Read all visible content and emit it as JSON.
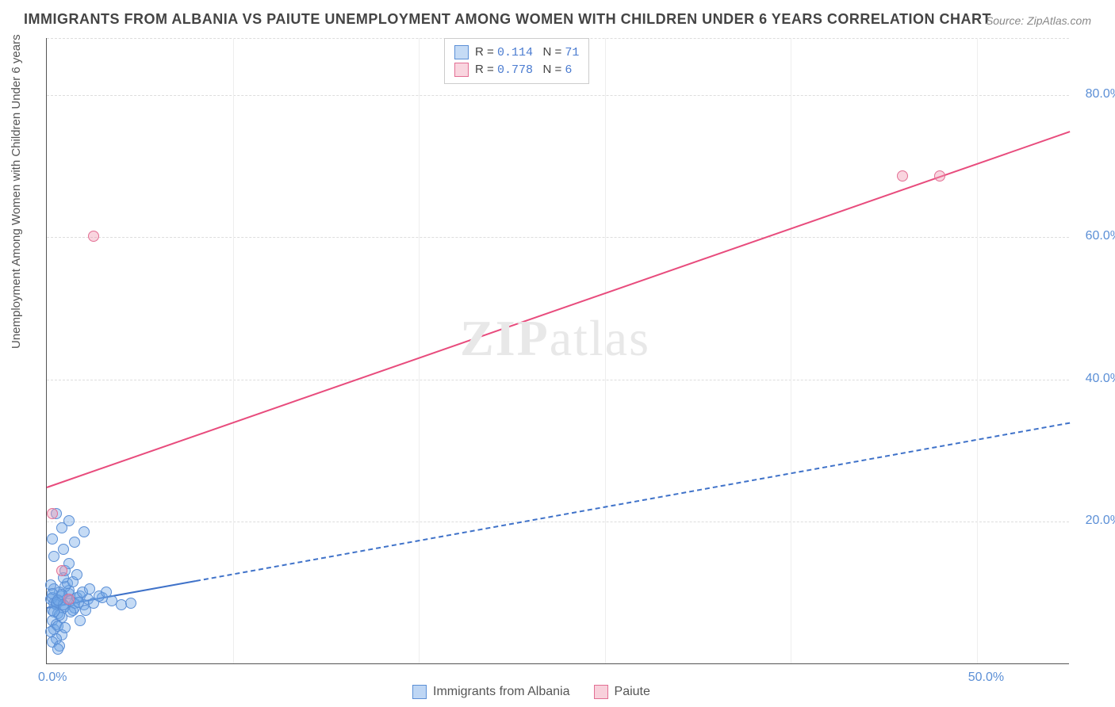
{
  "title": "IMMIGRANTS FROM ALBANIA VS PAIUTE UNEMPLOYMENT AMONG WOMEN WITH CHILDREN UNDER 6 YEARS CORRELATION CHART",
  "source": "Source: ZipAtlas.com",
  "watermark_zip": "ZIP",
  "watermark_atlas": "atlas",
  "ylabel": "Unemployment Among Women with Children Under 6 years",
  "chart": {
    "type": "scatter",
    "background_color": "#ffffff",
    "grid_color": "#dddddd",
    "axis_color": "#555555",
    "tick_color": "#5b8fd6",
    "xlim": [
      0,
      55
    ],
    "ylim": [
      0,
      88
    ],
    "xticks": [
      {
        "v": 0,
        "l": "0.0%"
      },
      {
        "v": 50,
        "l": "50.0%"
      }
    ],
    "yticks": [
      {
        "v": 20,
        "l": "20.0%"
      },
      {
        "v": 40,
        "l": "40.0%"
      },
      {
        "v": 60,
        "l": "60.0%"
      },
      {
        "v": 80,
        "l": "80.0%"
      }
    ],
    "vgrids": [
      10,
      20,
      30,
      40,
      50
    ],
    "series": [
      {
        "name": "Immigrants from Albania",
        "color_fill": "rgba(110,165,230,0.4)",
        "color_stroke": "#5b8fd6",
        "r_value": "0.114",
        "n_value": "71",
        "marker_size": 14,
        "trend": {
          "x1": 0,
          "y1": 8,
          "x2": 55,
          "y2": 34,
          "solid_until": 8,
          "stroke": "#3f72c9",
          "width": 2.5
        },
        "points": [
          [
            0.2,
            9
          ],
          [
            0.4,
            8.5
          ],
          [
            0.6,
            8.8
          ],
          [
            0.3,
            9.2
          ],
          [
            0.5,
            8.2
          ],
          [
            0.8,
            9.5
          ],
          [
            1,
            8
          ],
          [
            1.2,
            9.8
          ],
          [
            0.3,
            7.5
          ],
          [
            0.7,
            10
          ],
          [
            1.5,
            8.5
          ],
          [
            0.9,
            7.8
          ],
          [
            0.4,
            10.5
          ],
          [
            1.1,
            9
          ],
          [
            0.6,
            7
          ],
          [
            1.3,
            8.8
          ],
          [
            0.2,
            11
          ],
          [
            0.8,
            6.5
          ],
          [
            1.6,
            9.2
          ],
          [
            0.5,
            8.6
          ],
          [
            1.4,
            7.5
          ],
          [
            0.3,
            9.8
          ],
          [
            0.9,
            8.3
          ],
          [
            1.2,
            10.2
          ],
          [
            0.7,
            6.8
          ],
          [
            1.8,
            9.5
          ],
          [
            0.4,
            7.2
          ],
          [
            1,
            10.8
          ],
          [
            0.6,
            8.9
          ],
          [
            1.5,
            7.8
          ],
          [
            0.8,
            9.7
          ],
          [
            2,
            8.2
          ],
          [
            0.3,
            6
          ],
          [
            1.1,
            11.2
          ],
          [
            0.5,
            5.5
          ],
          [
            1.7,
            8.6
          ],
          [
            0.9,
            12
          ],
          [
            2.2,
            9
          ],
          [
            0.4,
            4.8
          ],
          [
            1.3,
            7.2
          ],
          [
            0.6,
            5.2
          ],
          [
            1.9,
            10
          ],
          [
            0.2,
            4.5
          ],
          [
            2.5,
            8.5
          ],
          [
            1,
            13
          ],
          [
            0.8,
            4
          ],
          [
            1.4,
            11.5
          ],
          [
            3,
            9.2
          ],
          [
            0.5,
            3.5
          ],
          [
            2.1,
            7.5
          ],
          [
            1.2,
            14
          ],
          [
            0.3,
            3
          ],
          [
            1.6,
            12.5
          ],
          [
            3.5,
            8.8
          ],
          [
            0.7,
            2.5
          ],
          [
            2.8,
            9.5
          ],
          [
            0.4,
            15
          ],
          [
            1.8,
            6
          ],
          [
            4,
            8.2
          ],
          [
            0.9,
            16
          ],
          [
            2.3,
            10.5
          ],
          [
            0.6,
            2
          ],
          [
            1.5,
            17
          ],
          [
            0.3,
            17.5
          ],
          [
            0.8,
            19
          ],
          [
            1.2,
            20
          ],
          [
            2,
            18.5
          ],
          [
            0.5,
            21
          ],
          [
            3.2,
            10
          ],
          [
            1,
            5
          ],
          [
            4.5,
            8.5
          ]
        ]
      },
      {
        "name": "Paiute",
        "color_fill": "rgba(240,150,175,0.4)",
        "color_stroke": "#e36f94",
        "r_value": "0.778",
        "n_value": "6",
        "marker_size": 14,
        "trend": {
          "x1": 0,
          "y1": 25,
          "x2": 55,
          "y2": 75,
          "solid_until": 55,
          "stroke": "#e84c7d",
          "width": 2.5
        },
        "points": [
          [
            0.3,
            21
          ],
          [
            0.8,
            13
          ],
          [
            1.2,
            9
          ],
          [
            2.5,
            60
          ],
          [
            46,
            68.5
          ],
          [
            48,
            68.5
          ]
        ]
      }
    ],
    "legend_bottom": [
      {
        "label": "Immigrants from Albania",
        "fill": "rgba(110,165,230,0.45)",
        "stroke": "#5b8fd6"
      },
      {
        "label": "Paiute",
        "fill": "rgba(240,150,175,0.45)",
        "stroke": "#e36f94"
      }
    ],
    "legend_top_labels": {
      "r": "R =",
      "n": "N ="
    }
  }
}
